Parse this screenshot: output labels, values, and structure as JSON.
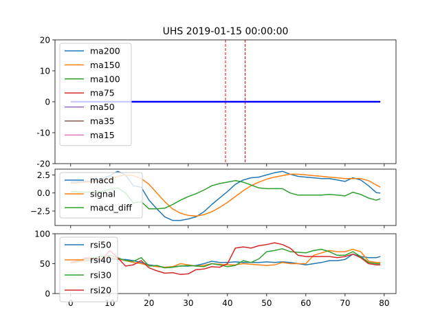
{
  "chart_data": [
    {
      "type": "line",
      "title": "UHS 2019-01-15 00:00:00",
      "xlim": [
        -4,
        83
      ],
      "ylim": [
        -20,
        20
      ],
      "yticks": [
        20,
        10,
        0,
        -10,
        -20
      ],
      "vlines": [
        39.5,
        44.5
      ],
      "colors": {
        "ma200": "#1f77b4",
        "ma150": "#ff7f0e",
        "ma100": "#2ca02c",
        "ma75": "#d62728",
        "ma50": "#9467bd",
        "ma35": "#8c564b",
        "ma15": "#e377c2",
        "flat": "#0000ff",
        "vline": "#ff0000"
      },
      "legend": {
        "position": "upper-left",
        "entries": [
          "ma200",
          "ma150",
          "ma100",
          "ma75",
          "ma50",
          "ma35",
          "ma15"
        ]
      },
      "series": [
        {
          "name": "ma200",
          "x": [
            0,
            79
          ],
          "values": [
            0,
            0
          ]
        }
      ]
    },
    {
      "type": "line",
      "title": "",
      "xlim": [
        -4,
        83
      ],
      "ylim": [
        -4.5,
        3.3
      ],
      "yticks": [
        2.5,
        0.0,
        -2.5
      ],
      "ytick_labels": [
        "2.5",
        "0.0",
        "−2.5"
      ],
      "legend": {
        "position": "upper-left",
        "entries": [
          "macd",
          "signal",
          "macd_diff"
        ]
      },
      "x": [
        0,
        2,
        4,
        6,
        8,
        10,
        12,
        14,
        16,
        18,
        20,
        22,
        24,
        26,
        28,
        30,
        32,
        34,
        36,
        38,
        40,
        42,
        44,
        46,
        48,
        50,
        52,
        54,
        56,
        58,
        60,
        62,
        64,
        66,
        68,
        70,
        72,
        74,
        76,
        78,
        79
      ],
      "series": [
        {
          "name": "macd",
          "color": "#1f77b4",
          "values": [
            1.5,
            1.55,
            1.6,
            1.7,
            1.9,
            2.4,
            3.0,
            2.5,
            1.0,
            0.8,
            -1.0,
            -2.2,
            -3.3,
            -3.8,
            -3.8,
            -3.6,
            -3.3,
            -2.6,
            -1.6,
            -0.7,
            0.2,
            1.2,
            1.8,
            2.1,
            2.2,
            2.5,
            2.8,
            3.0,
            2.6,
            2.3,
            2.2,
            2.1,
            2.0,
            2.0,
            1.8,
            1.6,
            2.1,
            1.8,
            1.0,
            0.05,
            0.0
          ]
        },
        {
          "name": "signal",
          "color": "#ff7f0e",
          "values": [
            1.3,
            1.4,
            1.5,
            1.6,
            1.7,
            1.9,
            2.3,
            2.5,
            2.4,
            2.0,
            1.2,
            0.0,
            -1.2,
            -2.2,
            -2.8,
            -3.1,
            -3.2,
            -3.0,
            -2.6,
            -2.0,
            -1.3,
            -0.5,
            0.3,
            1.0,
            1.5,
            1.9,
            2.2,
            2.4,
            2.6,
            2.6,
            2.5,
            2.4,
            2.3,
            2.2,
            2.1,
            2.0,
            2.0,
            2.0,
            1.7,
            1.1,
            0.8
          ]
        },
        {
          "name": "macd_diff",
          "color": "#2ca02c",
          "values": [
            0.2,
            0.15,
            0.1,
            0.1,
            0.2,
            0.5,
            0.7,
            0.0,
            -1.4,
            -1.2,
            -2.2,
            -2.2,
            -2.1,
            -1.6,
            -1.0,
            -0.5,
            -0.1,
            0.4,
            1.0,
            1.3,
            1.5,
            1.7,
            1.5,
            1.1,
            0.7,
            0.6,
            0.6,
            0.6,
            0.0,
            -0.3,
            -0.3,
            -0.3,
            -0.3,
            -0.2,
            -0.3,
            -0.4,
            0.1,
            -0.2,
            -0.7,
            -1.0,
            -0.8
          ]
        }
      ]
    },
    {
      "type": "line",
      "title": "",
      "xlim": [
        -4,
        83
      ],
      "ylim": [
        0,
        100
      ],
      "yticks": [
        100,
        50,
        0
      ],
      "xticks": [
        0,
        10,
        20,
        30,
        40,
        50,
        60,
        70,
        80
      ],
      "legend": {
        "position": "upper-left",
        "entries": [
          "rsi50",
          "rsi40",
          "rsi30",
          "rsi20"
        ]
      },
      "x": [
        0,
        2,
        4,
        6,
        8,
        10,
        12,
        14,
        16,
        18,
        20,
        22,
        24,
        26,
        28,
        30,
        32,
        34,
        36,
        38,
        40,
        42,
        44,
        46,
        48,
        50,
        52,
        54,
        56,
        58,
        60,
        62,
        64,
        66,
        68,
        70,
        72,
        74,
        76,
        78,
        79
      ],
      "series": [
        {
          "name": "rsi50",
          "color": "#1f77b4",
          "values": [
            52,
            53,
            55,
            55,
            56,
            58,
            57,
            57,
            55,
            52,
            48,
            46,
            44,
            45,
            46,
            46,
            47,
            50,
            54,
            52,
            52,
            53,
            52,
            52,
            52,
            53,
            52,
            53,
            52,
            50,
            48,
            50,
            52,
            55,
            55,
            57,
            66,
            62,
            60,
            60,
            62
          ]
        },
        {
          "name": "rsi40",
          "color": "#ff7f0e",
          "values": [
            51,
            53,
            56,
            58,
            59,
            60,
            58,
            55,
            52,
            50,
            47,
            45,
            44,
            45,
            50,
            48,
            46,
            47,
            50,
            49,
            48,
            48,
            50,
            49,
            48,
            47,
            48,
            52,
            50,
            50,
            50,
            64,
            68,
            72,
            70,
            70,
            74,
            70,
            54,
            52,
            52
          ]
        },
        {
          "name": "rsi30",
          "color": "#2ca02c",
          "values": [
            52,
            54,
            58,
            60,
            62,
            64,
            60,
            55,
            54,
            60,
            46,
            47,
            43,
            44,
            46,
            47,
            46,
            45,
            50,
            48,
            45,
            47,
            55,
            52,
            58,
            70,
            72,
            75,
            70,
            69,
            68,
            72,
            74,
            70,
            64,
            64,
            70,
            62,
            52,
            50,
            50
          ]
        },
        {
          "name": "rsi20",
          "color": "#d62728",
          "values": [
            52,
            55,
            60,
            58,
            57,
            72,
            60,
            46,
            48,
            55,
            43,
            38,
            34,
            35,
            32,
            33,
            40,
            41,
            45,
            44,
            50,
            76,
            78,
            76,
            80,
            82,
            85,
            82,
            76,
            64,
            62,
            62,
            62,
            62,
            60,
            62,
            66,
            60,
            50,
            48,
            48
          ]
        }
      ]
    }
  ]
}
